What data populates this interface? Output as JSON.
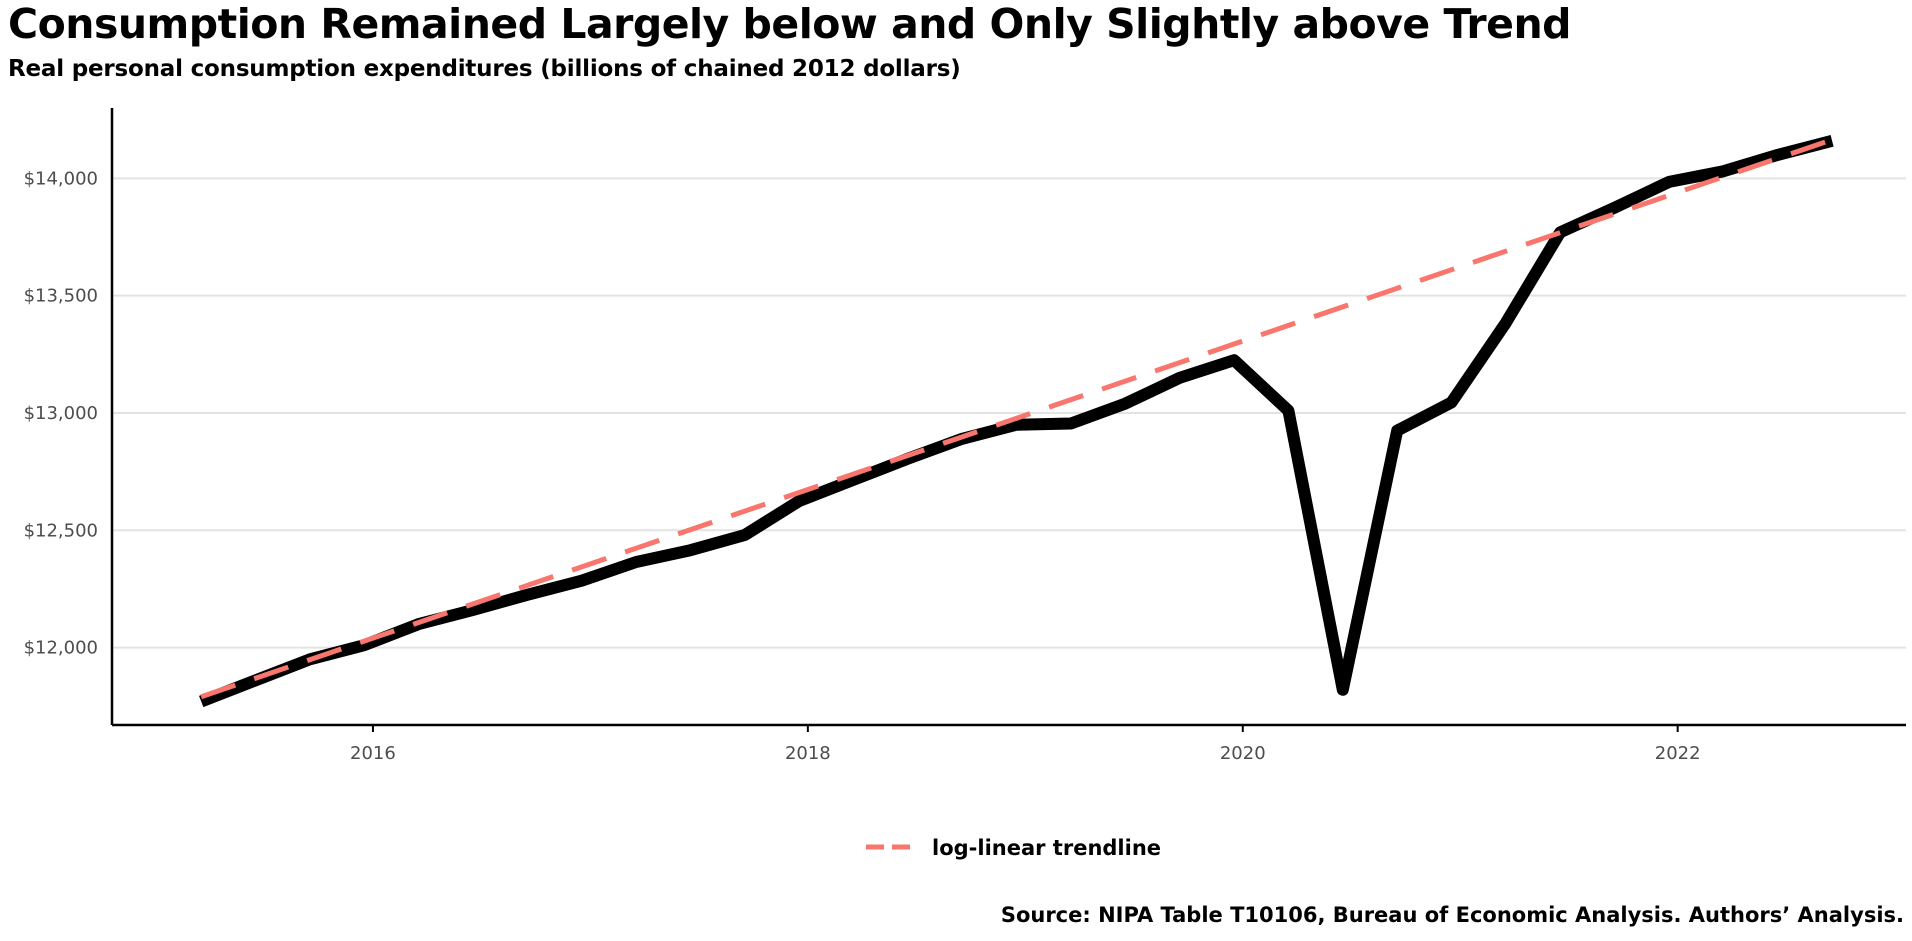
{
  "chart_data": {
    "type": "line",
    "title": "Consumption Remained Largely below and Only Slightly above Trend",
    "subtitle": "Real personal consumption expenditures (billions of chained 2012 dollars)",
    "source": "Source: NIPA Table T10106, Bureau of Economic Analysis. Authors’ Analysis.",
    "xlabel": "",
    "ylabel": "",
    "xlim": [
      2014.8,
      2023.05
    ],
    "ylim": [
      11670,
      14300
    ],
    "x_ticks": [
      2016,
      2018,
      2020,
      2022
    ],
    "x_tick_labels": [
      "2016",
      "2018",
      "2020",
      "2022"
    ],
    "y_ticks": [
      12000,
      12500,
      13000,
      13500,
      14000
    ],
    "y_tick_labels": [
      "$12,000",
      "$12,500",
      "$13,000",
      "$13,500",
      "$14,000"
    ],
    "grid": "horizontal",
    "legend_position": "bottom",
    "series": [
      {
        "color": "#000000",
        "style": "solid",
        "x": [
          2015.21,
          2015.46,
          2015.71,
          2015.96,
          2016.21,
          2016.46,
          2016.71,
          2016.96,
          2017.21,
          2017.46,
          2017.71,
          2017.96,
          2018.21,
          2018.46,
          2018.71,
          2018.96,
          2019.21,
          2019.46,
          2019.71,
          2019.96,
          2020.21,
          2020.46,
          2020.71,
          2020.96,
          2021.21,
          2021.46,
          2021.71,
          2021.96,
          2022.21,
          2022.46,
          2022.71
        ],
        "values": [
          11770,
          11860,
          11950,
          12010,
          12100,
          12160,
          12225,
          12285,
          12365,
          12415,
          12480,
          12625,
          12715,
          12805,
          12890,
          12950,
          12955,
          13040,
          13150,
          13225,
          13010,
          11820,
          12925,
          13045,
          13385,
          13770,
          13875,
          13985,
          14030,
          14100,
          14160
        ]
      },
      {
        "name": "log-linear trendline",
        "color": "#f8766d",
        "style": "dashed",
        "x": [
          2015.21,
          2022.71
        ],
        "values": [
          11790,
          14165
        ]
      }
    ]
  }
}
